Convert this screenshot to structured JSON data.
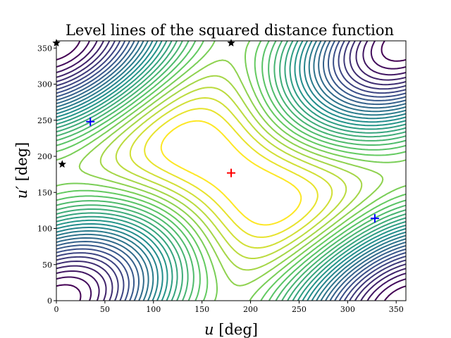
{
  "chart_data": {
    "type": "contour",
    "title": "Level lines of the squared distance function",
    "xlabel": {
      "var": "u",
      "unit": " [deg]"
    },
    "ylabel": {
      "var": "u′",
      "unit": " [deg]"
    },
    "xlim": [
      0,
      360
    ],
    "ylim": [
      0,
      360
    ],
    "xticks": [
      0,
      50,
      100,
      150,
      200,
      250,
      300,
      350
    ],
    "yticks": [
      0,
      50,
      100,
      150,
      200,
      250,
      300,
      350
    ],
    "grid": false,
    "colormap": [
      "#440154",
      "#3b528b",
      "#21918c",
      "#5ec962",
      "#fde725"
    ],
    "level_count": 30,
    "markers": [
      {
        "name": "max",
        "symbol": "plus",
        "color": "#ff0000",
        "x": 180,
        "y": 177
      },
      {
        "name": "min",
        "symbol": "plus",
        "color": "#0000ff",
        "x": 35,
        "y": 248
      },
      {
        "name": "min",
        "symbol": "plus",
        "color": "#0000ff",
        "x": 328,
        "y": 114
      },
      {
        "name": "saddle",
        "symbol": "star",
        "color": "#000000",
        "x": 6,
        "y": 189
      },
      {
        "name": "saddle",
        "symbol": "star",
        "color": "#000000",
        "x": 180,
        "y": 357
      },
      {
        "name": "saddle",
        "symbol": "star",
        "color": "#000000",
        "x": 0,
        "y": 357
      }
    ]
  }
}
